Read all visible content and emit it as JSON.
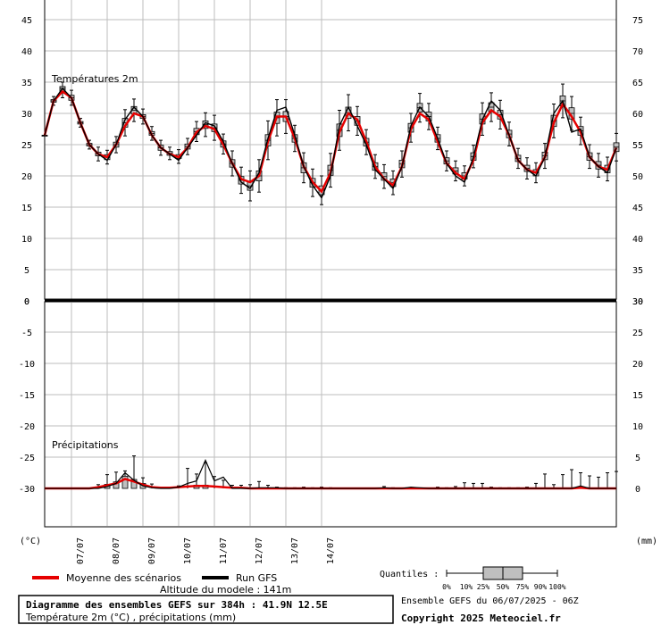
{
  "chart_data": {
    "type": "line",
    "title": "Diagramme des ensembles GEFS sur 384h : 41.9N 12.5E",
    "subtitle": "Température 2m (°C) , précipitations (mm)",
    "altitude": "Altitude du modele : 141m",
    "run_info": "Ensemble GEFS du 06/07/2025 - 06Z",
    "copyright": "Copyright 2025 Meteociel.fr",
    "legend": {
      "mean": "Moyenne des scénarios",
      "run": "Run GFS",
      "quantiles_label": "Quantiles :",
      "quantile_ticks": [
        "0%",
        "10%",
        "25%",
        "50%",
        "75%",
        "90%",
        "100%"
      ]
    },
    "panels": {
      "temperature": {
        "label": "Températures 2m",
        "left_ticks": [
          "45",
          "40",
          "35",
          "30",
          "25",
          "20",
          "15",
          "10",
          "5",
          "0"
        ],
        "right_ticks": [
          "75",
          "70",
          "65",
          "60",
          "55",
          "50",
          "45",
          "40",
          "35",
          "30"
        ],
        "ylim": [
          0,
          45
        ]
      },
      "precipitation": {
        "label": "Précipitations",
        "left_ticks": [
          "0",
          "-5",
          "-10",
          "-15",
          "-20",
          "-25",
          "-30"
        ],
        "right_ticks": [
          "30",
          "25",
          "20",
          "15",
          "10",
          "5",
          "0"
        ],
        "ylim": [
          0,
          30
        ]
      }
    },
    "axis_units": {
      "left": "(°C)",
      "right": "(mm)"
    },
    "x_labels": [
      "07/07",
      "08/07",
      "09/07",
      "10/07",
      "11/07",
      "12/07",
      "13/07",
      "14/07"
    ],
    "x_hours": [
      0,
      6,
      12,
      18,
      24,
      30,
      36,
      42,
      48,
      54,
      60,
      66,
      72,
      78,
      84,
      90,
      96,
      102,
      108,
      114,
      120,
      126,
      132,
      138,
      144,
      150,
      156,
      162,
      168,
      174,
      180,
      186,
      192,
      198,
      204,
      210,
      216,
      222,
      228,
      234,
      240,
      246,
      252,
      258,
      264,
      270,
      276,
      282,
      288,
      294,
      300,
      306,
      312,
      318,
      324,
      330,
      336,
      342,
      348,
      354,
      360,
      366,
      372,
      378,
      384
    ],
    "temp_run": [
      26.5,
      32,
      34,
      32.5,
      28.5,
      25,
      23.5,
      22.5,
      25,
      29,
      31,
      29.5,
      26.5,
      24.5,
      23.5,
      22.5,
      24.5,
      26.5,
      28.5,
      28,
      25.5,
      22,
      19,
      18,
      20.5,
      26,
      30.5,
      31,
      26.5,
      21.5,
      18.5,
      16.5,
      20,
      28,
      31,
      28,
      25,
      21,
      19.5,
      18,
      21.5,
      28,
      31,
      29.5,
      26,
      22,
      20,
      19,
      23,
      29,
      32,
      30.5,
      26.5,
      22.5,
      21,
      20,
      23,
      30,
      32,
      27,
      27.5,
      23,
      21.5,
      20.5,
      24.5
    ],
    "temp_mean": [
      26.5,
      32,
      33.5,
      32.5,
      28.5,
      25,
      23.5,
      23,
      25,
      28,
      30,
      29.5,
      26.5,
      24.5,
      23.5,
      23,
      24.5,
      27,
      28,
      27.5,
      25,
      22,
      19.5,
      19,
      20,
      25.5,
      29.5,
      29.5,
      26,
      21.5,
      19,
      17.5,
      20.5,
      27,
      30,
      29,
      25.5,
      21.5,
      19.5,
      18.5,
      21.5,
      27.5,
      30,
      29,
      25.5,
      22,
      20.5,
      19.5,
      22.5,
      28.5,
      30.5,
      29.5,
      26.5,
      22.5,
      21,
      20.5,
      23,
      28.5,
      31.5,
      29.5,
      27,
      23,
      21.5,
      21,
      24.5
    ],
    "temp_quantiles": [
      [
        26.5,
        26.5,
        26.5,
        26.5,
        26.5,
        26.5,
        26.5
      ],
      [
        31.3,
        31.6,
        31.8,
        32,
        32.2,
        32.4,
        32.7
      ],
      [
        32.5,
        33,
        33.5,
        34,
        34.3,
        34.6,
        35
      ],
      [
        31.3,
        31.7,
        32.1,
        32.5,
        32.9,
        33.3,
        33.7
      ],
      [
        27.8,
        28.1,
        28.3,
        28.5,
        28.7,
        28.9,
        29.2
      ],
      [
        24.3,
        24.6,
        24.8,
        25,
        25.2,
        25.4,
        25.7
      ],
      [
        22.4,
        22.9,
        23.2,
        23.5,
        23.8,
        24.1,
        24.6
      ],
      [
        21.9,
        22.3,
        22.6,
        23,
        23.4,
        23.7,
        24.1
      ],
      [
        23.7,
        24.2,
        24.6,
        25,
        25.4,
        25.8,
        26.3
      ],
      [
        26.4,
        27.2,
        27.8,
        28.5,
        29.2,
        29.8,
        30.6
      ],
      [
        28.7,
        29.4,
        29.9,
        30.5,
        31.1,
        31.6,
        32.3
      ],
      [
        28.3,
        28.8,
        29.2,
        29.5,
        29.8,
        30.2,
        30.7
      ],
      [
        25.7,
        26.1,
        26.5,
        26.8,
        27.1,
        27.5,
        27.9
      ],
      [
        23.3,
        23.8,
        24.1,
        24.5,
        24.9,
        25.2,
        25.7
      ],
      [
        22.6,
        23,
        23.3,
        23.6,
        23.9,
        24.2,
        24.6
      ],
      [
        22,
        22.4,
        22.8,
        23.1,
        23.4,
        23.8,
        24.2
      ],
      [
        23.4,
        23.9,
        24.3,
        24.7,
        25.1,
        25.5,
        26
      ],
      [
        25.5,
        26.1,
        26.6,
        27.1,
        27.6,
        28.1,
        28.7
      ],
      [
        26.3,
        27,
        27.6,
        28.2,
        28.8,
        29.4,
        30.1
      ],
      [
        25.7,
        26.5,
        27.1,
        27.7,
        28.3,
        28.9,
        29.7
      ],
      [
        23.5,
        24.1,
        24.6,
        25.1,
        25.6,
        26.1,
        26.7
      ],
      [
        20,
        20.8,
        21.4,
        22,
        22.6,
        23.2,
        24
      ],
      [
        17.2,
        18,
        18.7,
        19.3,
        19.9,
        20.6,
        21.4
      ],
      [
        16,
        17,
        17.7,
        18.4,
        19.1,
        19.8,
        20.8
      ],
      [
        17.4,
        18.4,
        19.2,
        20,
        20.8,
        21.6,
        22.6
      ],
      [
        22.6,
        23.8,
        24.8,
        25.7,
        26.6,
        27.6,
        28.8
      ],
      [
        26.4,
        27.5,
        28.4,
        29.3,
        30.2,
        31.1,
        32.2
      ],
      [
        26.8,
        27.9,
        28.7,
        29.5,
        30.3,
        31.1,
        32.2
      ],
      [
        23.9,
        24.8,
        25.4,
        26,
        26.6,
        27.2,
        28.1
      ],
      [
        18.9,
        19.8,
        20.5,
        21.3,
        22.1,
        22.8,
        23.7
      ],
      [
        16.7,
        17.5,
        18.2,
        18.9,
        19.6,
        20.3,
        21.1
      ],
      [
        15.4,
        16.3,
        17,
        17.7,
        18.4,
        19.1,
        20
      ],
      [
        18.2,
        19.2,
        20.1,
        20.9,
        21.7,
        22.6,
        23.6
      ],
      [
        24.1,
        25.3,
        26.3,
        27.3,
        28.3,
        29.3,
        30.5
      ],
      [
        27.2,
        28.3,
        29.2,
        30.1,
        31,
        31.9,
        33
      ],
      [
        26.5,
        27.4,
        28.1,
        28.8,
        29.5,
        30.2,
        31.1
      ],
      [
        23.4,
        24.2,
        24.8,
        25.4,
        26,
        26.6,
        27.4
      ],
      [
        19.6,
        20.3,
        20.9,
        21.5,
        22.1,
        22.7,
        23.4
      ],
      [
        18,
        18.7,
        19.3,
        19.9,
        20.5,
        21.1,
        21.8
      ],
      [
        17,
        17.7,
        18.3,
        18.9,
        19.5,
        20.1,
        20.8
      ],
      [
        19.8,
        20.6,
        21.3,
        21.9,
        22.5,
        23.2,
        24
      ],
      [
        25.4,
        26.3,
        27,
        27.7,
        28.4,
        29.1,
        30
      ],
      [
        28.6,
        29.5,
        30.2,
        30.9,
        31.6,
        32.3,
        33.2
      ],
      [
        27.4,
        28.2,
        28.8,
        29.5,
        30.2,
        30.8,
        31.6
      ],
      [
        24.2,
        24.9,
        25.4,
        26,
        26.6,
        27.1,
        27.8
      ],
      [
        20.8,
        21.4,
        21.9,
        22.4,
        22.9,
        23.4,
        24
      ],
      [
        19.2,
        19.8,
        20.3,
        20.8,
        21.3,
        21.8,
        22.4
      ],
      [
        18.4,
        19,
        19.5,
        20,
        20.5,
        21,
        21.6
      ],
      [
        21.3,
        22,
        22.5,
        23.1,
        23.7,
        24.2,
        24.9
      ],
      [
        26.5,
        27.5,
        28.3,
        29.1,
        29.9,
        30.7,
        31.7
      ],
      [
        28.7,
        29.6,
        30.3,
        31,
        31.7,
        32.4,
        33.3
      ],
      [
        27.5,
        28.4,
        29.1,
        29.8,
        30.5,
        31.2,
        32.1
      ],
      [
        24.8,
        25.5,
        26.1,
        26.7,
        27.3,
        27.9,
        28.6
      ],
      [
        21.2,
        21.8,
        22.3,
        22.8,
        23.3,
        23.8,
        24.4
      ],
      [
        19.5,
        20.2,
        20.7,
        21.2,
        21.7,
        22.2,
        22.9
      ],
      [
        18.9,
        19.5,
        20,
        20.5,
        21,
        21.5,
        22.1
      ],
      [
        21.2,
        21.9,
        22.6,
        23.2,
        23.8,
        24.5,
        25.2
      ],
      [
        26.1,
        27.1,
        27.9,
        28.8,
        29.7,
        30.5,
        31.5
      ],
      [
        29.3,
        30.3,
        31.2,
        32,
        32.8,
        33.7,
        34.7
      ],
      [
        27.3,
        28.3,
        29.1,
        30,
        30.9,
        31.7,
        32.7
      ],
      [
        25,
        25.8,
        26.5,
        27.2,
        27.9,
        28.6,
        29.4
      ],
      [
        21.2,
        21.9,
        22.5,
        23.1,
        23.7,
        24.3,
        25
      ],
      [
        19.8,
        20.5,
        21.1,
        21.7,
        22.3,
        22.9,
        23.6
      ],
      [
        19.2,
        19.9,
        20.5,
        21.1,
        21.7,
        22.3,
        23
      ],
      [
        22.4,
        23.2,
        23.9,
        24.6,
        25.3,
        26,
        26.8
      ]
    ],
    "precip_run": [
      0,
      0,
      0,
      0,
      0,
      0,
      0,
      0.3,
      0.8,
      2.5,
      1.3,
      0.4,
      0.1,
      0,
      0,
      0.2,
      0.8,
      1.2,
      4.5,
      1.2,
      1.8,
      0,
      0,
      0,
      0.1,
      0.1,
      0.1,
      0,
      0,
      0,
      0,
      0,
      0,
      0,
      0,
      0,
      0,
      0,
      0.1,
      0,
      0,
      0.2,
      0.1,
      0,
      0,
      0,
      0,
      0,
      0,
      0,
      0,
      0,
      0,
      0,
      0,
      0,
      0,
      0,
      0,
      0,
      0.4,
      0,
      0,
      0,
      0
    ],
    "precip_mean": [
      0,
      0,
      0,
      0,
      0,
      0,
      0.2,
      0.5,
      0.8,
      1.5,
      1.1,
      0.6,
      0.2,
      0.1,
      0.1,
      0.2,
      0.3,
      0.4,
      0.4,
      0.3,
      0.2,
      0.1,
      0.1,
      0,
      0,
      0,
      0,
      0,
      0,
      0,
      0,
      0,
      0,
      0,
      0,
      0,
      0,
      0,
      0,
      0,
      0,
      0,
      0,
      0,
      0,
      0,
      0,
      0,
      0,
      0,
      0,
      0,
      0,
      0,
      0,
      0,
      0,
      0,
      0,
      0,
      0.1,
      0,
      0,
      0,
      0
    ],
    "precip_max": [
      0,
      0,
      0,
      0,
      0,
      0,
      0.6,
      2.2,
      2.6,
      2.8,
      5.2,
      1.7,
      0.7,
      0.2,
      0.2,
      0.4,
      3.2,
      2.3,
      4.1,
      1.9,
      1.3,
      0.5,
      0.5,
      0.6,
      1.1,
      0.5,
      0.2,
      0.1,
      0.1,
      0.2,
      0.1,
      0.2,
      0.1,
      0,
      0,
      0,
      0,
      0,
      0.3,
      0.1,
      0,
      0.1,
      0,
      0,
      0.2,
      0.1,
      0.3,
      0.9,
      0.8,
      0.8,
      0.2,
      0.1,
      0.1,
      0.1,
      0.2,
      0.8,
      2.3,
      0.6,
      2.2,
      3,
      2.5,
      2,
      1.8,
      2.5,
      2.7
    ]
  }
}
